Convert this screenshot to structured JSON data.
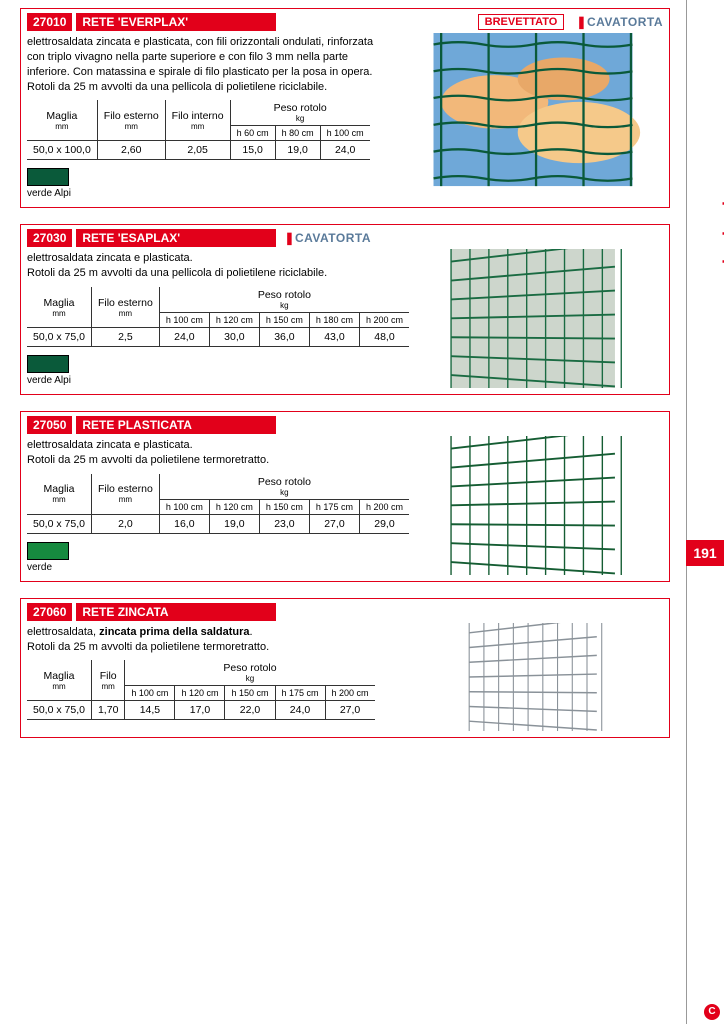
{
  "side": {
    "label": "recinzioni",
    "page": "191"
  },
  "colors": {
    "red": "#e2001a",
    "verde_alpi": "#0a5a3a",
    "verde": "#168a3f",
    "zinc": "#9aa4ab"
  },
  "sections": [
    {
      "code": "27010",
      "title": "RETE 'EVERPLAX'",
      "patent": "BREVETTATO",
      "brand": "CAVATORTA",
      "desc": "elettrosaldata zincata e plasticata, con fili orizzontali ondulati, rinforzata con triplo vivagno nella parte superiore e con filo 3 mm nella parte inferiore. Con matassina e spirale di filo plasticato per la posa in opera.\nRotoli da 25 m avvolti da una pellicola di polietilene riciclabile.",
      "table": {
        "head1": [
          "Maglia",
          "Filo esterno",
          "Filo interno",
          "Peso rotolo"
        ],
        "unit": "mm",
        "peso_unit": "kg",
        "cols": [
          "h 60 cm",
          "h 80 cm",
          "h 100 cm"
        ],
        "rows": [
          [
            "50,0 x 100,0",
            "2,60",
            "2,05",
            "15,0",
            "19,0",
            "24,0"
          ]
        ]
      },
      "swatch_color": "#0a5a3a",
      "swatch_label": "verde Alpi",
      "mesh_color": "#0a5a3a",
      "bg_style": "sky"
    },
    {
      "code": "27030",
      "title": "RETE 'ESAPLAX'",
      "brand": "CAVATORTA",
      "desc": "elettrosaldata zincata e plasticata.\nRotoli da 25 m avvolti da una pellicola di polietilene riciclabile.",
      "table": {
        "head1": [
          "Maglia",
          "Filo esterno",
          "Peso rotolo"
        ],
        "unit": "mm",
        "peso_unit": "kg",
        "cols": [
          "h 100 cm",
          "h 120 cm",
          "h 150 cm",
          "h 180 cm",
          "h 200 cm"
        ],
        "rows": [
          [
            "50,0 x 75,0",
            "2,5",
            "24,0",
            "30,0",
            "36,0",
            "43,0",
            "48,0"
          ]
        ]
      },
      "swatch_color": "#0a5a3a",
      "swatch_label": "verde Alpi",
      "mesh_color": "#1a6b42",
      "bg_style": "plain"
    },
    {
      "code": "27050",
      "title": "RETE PLASTICATA",
      "desc": "elettrosaldata zincata e plasticata.\nRotoli da 25 m avvolti da polietilene termoretratto.",
      "table": {
        "head1": [
          "Maglia",
          "Filo esterno",
          "Peso rotolo"
        ],
        "unit": "mm",
        "peso_unit": "kg",
        "cols": [
          "h 100 cm",
          "h 120 cm",
          "h 150 cm",
          "h 175 cm",
          "h 200 cm"
        ],
        "rows": [
          [
            "50,0 x 75,0",
            "2,0",
            "16,0",
            "19,0",
            "23,0",
            "27,0",
            "29,0"
          ]
        ]
      },
      "swatch_color": "#168a3f",
      "swatch_label": "verde",
      "mesh_color": "#155d33",
      "bg_style": "white-persp"
    },
    {
      "code": "27060",
      "title": "RETE ZINCATA",
      "desc_html": "elettrosaldata, <b>zincata prima della saldatura</b>.\nRotoli da 25 m avvolti da polietilene termoretratto.",
      "table": {
        "head1": [
          "Maglia",
          "Filo",
          "Peso rotolo"
        ],
        "unit": "mm",
        "peso_unit": "kg",
        "cols": [
          "h 100 cm",
          "h 120 cm",
          "h 150 cm",
          "h 175 cm",
          "h 200 cm"
        ],
        "rows": [
          [
            "50,0 x 75,0",
            "1,70",
            "14,5",
            "17,0",
            "22,0",
            "24,0",
            "27,0"
          ]
        ]
      },
      "mesh_color": "#8a9299",
      "bg_style": "white-persp"
    }
  ]
}
